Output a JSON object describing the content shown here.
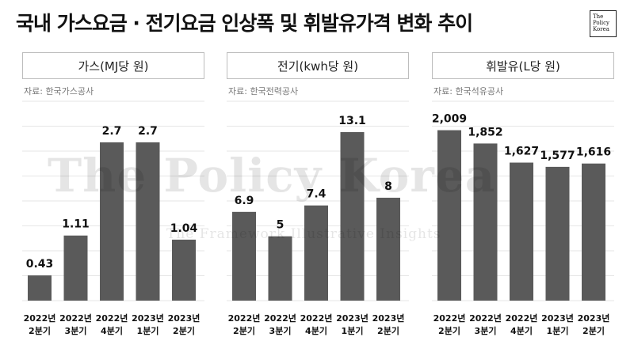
{
  "title": "국내 가스요금 · 전기요금 인상폭 및 휘발유가격 변화 추이",
  "logo": {
    "lines": [
      "The",
      "Policy",
      "Korea"
    ]
  },
  "watermark": {
    "main": "The Policy Korea",
    "sub": "The Framework Illustrative Insights"
  },
  "chart_data": [
    {
      "type": "bar",
      "title": "가스(MJ당 원)",
      "source": "자료: 한국가스공사",
      "categories": [
        [
          "2022년",
          "2분기"
        ],
        [
          "2022년",
          "3분기"
        ],
        [
          "2022년",
          "4분기"
        ],
        [
          "2023년",
          "1분기"
        ],
        [
          "2023년",
          "2분기"
        ]
      ],
      "values": [
        0.43,
        1.11,
        2.7,
        2.7,
        1.04
      ],
      "labels": [
        "0.43",
        "1.11",
        "2.7",
        "2.7",
        "1.04"
      ],
      "ylim": [
        0,
        3.4
      ],
      "bar_color": "#5a5a5a",
      "grid": true
    },
    {
      "type": "bar",
      "title": "전기(kwh당 원)",
      "source": "자료: 한국전력공사",
      "categories": [
        [
          "2022년",
          "2분기"
        ],
        [
          "2022년",
          "3분기"
        ],
        [
          "2022년",
          "4분기"
        ],
        [
          "2023년",
          "1분기"
        ],
        [
          "2023년",
          "2분기"
        ]
      ],
      "values": [
        6.9,
        5,
        7.4,
        13.1,
        8
      ],
      "labels": [
        "6.9",
        "5",
        "7.4",
        "13.1",
        "8"
      ],
      "ylim": [
        0,
        15.5
      ],
      "bar_color": "#5a5a5a",
      "grid": true
    },
    {
      "type": "bar",
      "title": "휘발유(L당 원)",
      "source": "자료: 한국석유공사",
      "categories": [
        [
          "2022년",
          "2분기"
        ],
        [
          "2022년",
          "3분기"
        ],
        [
          "2022년",
          "4분기"
        ],
        [
          "2023년",
          "1분기"
        ],
        [
          "2023년",
          "2분기"
        ]
      ],
      "values": [
        2009,
        1852,
        1627,
        1577,
        1616
      ],
      "labels": [
        "2,009",
        "1,852",
        "1,627",
        "1,577",
        "1,616"
      ],
      "ylim": [
        0,
        2350
      ],
      "bar_color": "#5a5a5a",
      "grid": true
    }
  ]
}
